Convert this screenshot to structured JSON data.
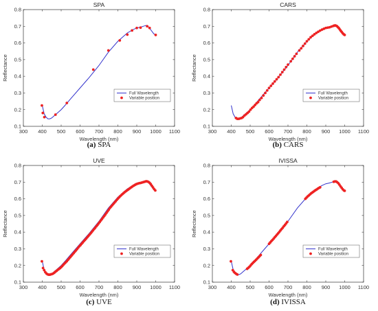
{
  "chart_data": [
    {
      "type": "line",
      "title": "SPA",
      "caption": {
        "label": "(a)",
        "text": "SPA"
      },
      "xlabel": "Wavelength (nm)",
      "ylabel": "Reflectance",
      "xlim": [
        300,
        1100
      ],
      "ylim": [
        0.1,
        0.8
      ],
      "xticks": [
        300,
        400,
        500,
        600,
        700,
        800,
        900,
        1000,
        1100
      ],
      "yticks": [
        0.1,
        0.2,
        0.3,
        0.4,
        0.5,
        0.6,
        0.7,
        0.8
      ],
      "legend_position": "bottom-right",
      "series": [
        {
          "name": "Full Wavelength",
          "kind": "line",
          "color": "#3333cc",
          "x": [
            400,
            410,
            420,
            430,
            440,
            450,
            460,
            480,
            500,
            520,
            550,
            600,
            650,
            700,
            750,
            800,
            850,
            880,
            900,
            920,
            940,
            950,
            960,
            970,
            980,
            990,
            1000
          ],
          "y": [
            0.225,
            0.175,
            0.155,
            0.145,
            0.145,
            0.15,
            0.16,
            0.18,
            0.2,
            0.225,
            0.265,
            0.33,
            0.395,
            0.465,
            0.545,
            0.61,
            0.66,
            0.68,
            0.69,
            0.695,
            0.702,
            0.705,
            0.7,
            0.685,
            0.67,
            0.655,
            0.648
          ]
        },
        {
          "name": "Variable position",
          "kind": "scatter",
          "color": "#ee2222",
          "x": [
            398,
            403,
            411,
            470,
            530,
            670,
            750,
            810,
            850,
            875,
            900,
            920,
            955,
            968,
            1000
          ],
          "y": [
            0.225,
            0.18,
            0.155,
            0.17,
            0.24,
            0.44,
            0.555,
            0.615,
            0.65,
            0.675,
            0.69,
            0.692,
            0.7,
            0.69,
            0.648
          ]
        }
      ]
    },
    {
      "type": "line",
      "title": "CARS",
      "caption": {
        "label": "(b)",
        "text": "CARS"
      },
      "xlabel": "Wavelength (nm)",
      "ylabel": "Reflectance",
      "xlim": [
        300,
        1100
      ],
      "ylim": [
        0.1,
        0.8
      ],
      "xticks": [
        300,
        400,
        500,
        600,
        700,
        800,
        900,
        1000,
        1100
      ],
      "yticks": [
        0.1,
        0.2,
        0.3,
        0.4,
        0.5,
        0.6,
        0.7,
        0.8
      ],
      "legend_position": "bottom-right",
      "series": [
        {
          "name": "Full Wavelength",
          "kind": "line",
          "color": "#3333cc",
          "x": [
            400,
            410,
            420,
            430,
            440,
            450,
            460,
            480,
            500,
            520,
            550,
            600,
            650,
            700,
            750,
            800,
            850,
            880,
            900,
            920,
            940,
            950,
            960,
            970,
            980,
            990,
            1000
          ],
          "y": [
            0.225,
            0.175,
            0.155,
            0.145,
            0.145,
            0.15,
            0.16,
            0.18,
            0.2,
            0.225,
            0.265,
            0.33,
            0.395,
            0.465,
            0.545,
            0.61,
            0.66,
            0.68,
            0.69,
            0.695,
            0.702,
            0.705,
            0.7,
            0.685,
            0.67,
            0.655,
            0.648
          ]
        },
        {
          "name": "Variable position",
          "kind": "scatter",
          "color": "#ee2222",
          "x": [
            425,
            432,
            440,
            448,
            455,
            462,
            470,
            478,
            486,
            494,
            502,
            510,
            518,
            526,
            534,
            542,
            550,
            560,
            570,
            580,
            590,
            600,
            610,
            620,
            630,
            640,
            650,
            660,
            670,
            680,
            690,
            700,
            715,
            725,
            735,
            745,
            760,
            770,
            780,
            790,
            800,
            810,
            820,
            830,
            840,
            850,
            860,
            870,
            880,
            890,
            900,
            910,
            920,
            930,
            940,
            945,
            950,
            955,
            960,
            965,
            970,
            975,
            980,
            985,
            990,
            995,
            1000
          ],
          "y": [
            0.15,
            0.145,
            0.145,
            0.148,
            0.15,
            0.155,
            0.165,
            0.172,
            0.18,
            0.188,
            0.2,
            0.21,
            0.218,
            0.228,
            0.238,
            0.245,
            0.258,
            0.27,
            0.285,
            0.3,
            0.315,
            0.33,
            0.343,
            0.356,
            0.369,
            0.382,
            0.395,
            0.41,
            0.425,
            0.44,
            0.455,
            0.47,
            0.49,
            0.505,
            0.52,
            0.535,
            0.555,
            0.568,
            0.582,
            0.596,
            0.61,
            0.622,
            0.634,
            0.643,
            0.652,
            0.66,
            0.667,
            0.674,
            0.68,
            0.685,
            0.69,
            0.692,
            0.694,
            0.698,
            0.702,
            0.704,
            0.705,
            0.703,
            0.7,
            0.694,
            0.688,
            0.68,
            0.672,
            0.665,
            0.658,
            0.652,
            0.648
          ]
        }
      ]
    },
    {
      "type": "line",
      "title": "UVE",
      "caption": {
        "label": "(c)",
        "text": "UVE"
      },
      "xlabel": "Wavelength (nm)",
      "ylabel": "Reflectance",
      "xlim": [
        300,
        1100
      ],
      "ylim": [
        0.1,
        0.8
      ],
      "xticks": [
        300,
        400,
        500,
        600,
        700,
        800,
        900,
        1000,
        1100
      ],
      "yticks": [
        0.1,
        0.2,
        0.3,
        0.4,
        0.5,
        0.6,
        0.7,
        0.8
      ],
      "legend_position": "bottom-right",
      "series": [
        {
          "name": "Full Wavelength",
          "kind": "line",
          "color": "#3333cc",
          "x": [
            400,
            410,
            420,
            430,
            440,
            450,
            460,
            480,
            500,
            520,
            550,
            600,
            650,
            700,
            750,
            800,
            850,
            880,
            900,
            920,
            940,
            950,
            960,
            970,
            980,
            990,
            1000
          ],
          "y": [
            0.225,
            0.175,
            0.155,
            0.145,
            0.145,
            0.15,
            0.16,
            0.18,
            0.2,
            0.225,
            0.265,
            0.33,
            0.395,
            0.465,
            0.545,
            0.61,
            0.66,
            0.68,
            0.69,
            0.695,
            0.702,
            0.705,
            0.7,
            0.685,
            0.67,
            0.655,
            0.648
          ]
        },
        {
          "name": "Variable position",
          "kind": "scatter",
          "color": "#ee2222",
          "x": [
            398,
            404,
            410,
            416,
            422,
            428,
            434,
            440,
            446,
            452,
            458,
            464,
            470,
            476,
            482,
            488,
            494,
            500,
            506,
            512,
            518,
            524,
            530,
            536,
            542,
            548,
            554,
            560,
            566,
            572,
            578,
            584,
            590,
            596,
            602,
            608,
            614,
            620,
            626,
            632,
            638,
            644,
            650,
            656,
            662,
            668,
            674,
            680,
            686,
            692,
            698,
            704,
            710,
            716,
            722,
            728,
            734,
            740,
            746,
            752,
            758,
            764,
            770,
            776,
            782,
            788,
            794,
            800,
            806,
            812,
            818,
            824,
            830,
            836,
            842,
            848,
            854,
            860,
            866,
            872,
            878,
            884,
            890,
            896,
            902,
            908,
            914,
            920,
            926,
            932,
            938,
            944,
            950,
            956,
            962,
            968,
            974,
            980,
            986,
            992,
            998
          ],
          "y": [
            0.225,
            0.185,
            0.172,
            0.16,
            0.152,
            0.147,
            0.145,
            0.145,
            0.147,
            0.149,
            0.152,
            0.157,
            0.163,
            0.168,
            0.174,
            0.179,
            0.184,
            0.19,
            0.197,
            0.205,
            0.212,
            0.219,
            0.226,
            0.234,
            0.242,
            0.25,
            0.258,
            0.266,
            0.274,
            0.282,
            0.29,
            0.298,
            0.307,
            0.315,
            0.322,
            0.33,
            0.338,
            0.346,
            0.353,
            0.361,
            0.369,
            0.377,
            0.385,
            0.393,
            0.401,
            0.41,
            0.418,
            0.426,
            0.435,
            0.443,
            0.452,
            0.461,
            0.47,
            0.479,
            0.488,
            0.497,
            0.506,
            0.516,
            0.525,
            0.535,
            0.545,
            0.553,
            0.561,
            0.569,
            0.577,
            0.585,
            0.593,
            0.601,
            0.608,
            0.615,
            0.622,
            0.628,
            0.634,
            0.64,
            0.645,
            0.65,
            0.655,
            0.66,
            0.665,
            0.67,
            0.675,
            0.679,
            0.683,
            0.687,
            0.69,
            0.692,
            0.694,
            0.695,
            0.697,
            0.699,
            0.701,
            0.703,
            0.705,
            0.704,
            0.701,
            0.696,
            0.688,
            0.678,
            0.668,
            0.658,
            0.65
          ]
        }
      ]
    },
    {
      "type": "line",
      "title": "IVISSA",
      "caption": {
        "label": "(d)",
        "text": "IVISSA"
      },
      "xlabel": "Wavelength (nm)",
      "ylabel": "Reflectance",
      "xlim": [
        300,
        1100
      ],
      "ylim": [
        0.1,
        0.8
      ],
      "xticks": [
        300,
        400,
        500,
        600,
        700,
        800,
        900,
        1000,
        1100
      ],
      "yticks": [
        0.1,
        0.2,
        0.3,
        0.4,
        0.5,
        0.6,
        0.7,
        0.8
      ],
      "legend_position": "bottom-right",
      "series": [
        {
          "name": "Full Wavelength",
          "kind": "line",
          "color": "#3333cc",
          "x": [
            400,
            410,
            420,
            430,
            440,
            450,
            460,
            480,
            500,
            520,
            550,
            600,
            650,
            700,
            750,
            800,
            850,
            880,
            900,
            920,
            940,
            950,
            960,
            970,
            980,
            990,
            1000
          ],
          "y": [
            0.225,
            0.175,
            0.155,
            0.145,
            0.145,
            0.15,
            0.16,
            0.18,
            0.2,
            0.225,
            0.265,
            0.33,
            0.395,
            0.465,
            0.545,
            0.61,
            0.66,
            0.68,
            0.69,
            0.695,
            0.702,
            0.705,
            0.7,
            0.685,
            0.67,
            0.655,
            0.648
          ]
        },
        {
          "name": "Variable position",
          "kind": "scatter",
          "color": "#ee2222",
          "x": [
            398,
            408,
            414,
            420,
            426,
            432,
            484,
            490,
            496,
            502,
            508,
            514,
            520,
            526,
            532,
            538,
            544,
            550,
            556,
            600,
            606,
            612,
            618,
            624,
            630,
            636,
            642,
            648,
            654,
            660,
            666,
            672,
            678,
            684,
            690,
            696,
            792,
            798,
            804,
            810,
            816,
            822,
            828,
            834,
            840,
            846,
            852,
            858,
            864,
            870,
            942,
            948,
            954,
            960,
            966,
            972,
            978,
            984,
            990,
            996,
            1000
          ],
          "y": [
            0.225,
            0.172,
            0.162,
            0.155,
            0.15,
            0.146,
            0.18,
            0.186,
            0.192,
            0.2,
            0.208,
            0.215,
            0.222,
            0.228,
            0.235,
            0.242,
            0.249,
            0.256,
            0.263,
            0.33,
            0.338,
            0.346,
            0.353,
            0.361,
            0.369,
            0.377,
            0.385,
            0.393,
            0.401,
            0.41,
            0.418,
            0.426,
            0.435,
            0.443,
            0.452,
            0.461,
            0.6,
            0.607,
            0.614,
            0.62,
            0.626,
            0.632,
            0.637,
            0.642,
            0.647,
            0.652,
            0.656,
            0.661,
            0.665,
            0.669,
            0.702,
            0.704,
            0.704,
            0.7,
            0.694,
            0.685,
            0.675,
            0.666,
            0.657,
            0.65,
            0.648
          ]
        }
      ]
    }
  ]
}
